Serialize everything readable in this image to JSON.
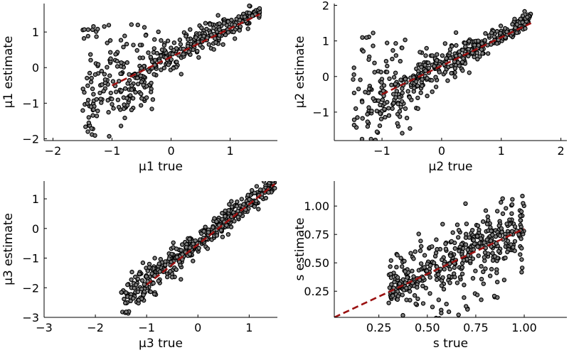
{
  "chart_data": [
    {
      "type": "scatter",
      "xlabel": "μ1 true",
      "ylabel": "μ1 estimate",
      "xlim": [
        -2.15,
        1.8
      ],
      "ylim": [
        -2.05,
        1.8
      ],
      "xticks": [
        -2,
        -1,
        0,
        1
      ],
      "yticks": [
        -2,
        -1,
        0,
        1
      ],
      "xtick_labels": [
        "−2",
        "−1",
        "0",
        "1"
      ],
      "ytick_labels": [
        "−2",
        "−1",
        "0",
        "1"
      ],
      "x_range": [
        -1.5,
        1.5
      ],
      "reference_line": {
        "x": [
          -1.0,
          1.5
        ],
        "y": [
          -0.5,
          1.5
        ],
        "color": "#9b1111",
        "style": "dashed"
      },
      "grid": false,
      "series": [
        {
          "count": 450,
          "x_range": [
            -1.5,
            1.5
          ]
        }
      ]
    },
    {
      "type": "scatter",
      "xlabel": "μ2 true",
      "ylabel": "μ2 estimate",
      "xlim": [
        -1.8,
        2.1
      ],
      "ylim": [
        -1.8,
        2.05
      ],
      "xticks": [
        -1,
        0,
        1,
        2
      ],
      "yticks": [
        -1,
        0,
        1,
        2
      ],
      "xtick_labels": [
        "−1",
        "0",
        "1",
        "2"
      ],
      "ytick_labels": [
        "−1",
        "0",
        "1",
        "2"
      ],
      "x_range": [
        -1.5,
        1.5
      ],
      "reference_line": {
        "x": [
          -1.0,
          1.5
        ],
        "y": [
          -0.5,
          1.5
        ],
        "color": "#9b1111",
        "style": "dashed"
      },
      "grid": false,
      "series": [
        {
          "count": 450,
          "x_range": [
            -1.5,
            1.5
          ]
        }
      ]
    },
    {
      "type": "scatter",
      "xlabel": "μ3 true",
      "ylabel": "μ3 estimate",
      "xlim": [
        -3.0,
        1.55
      ],
      "ylim": [
        -3.0,
        1.6
      ],
      "xticks": [
        -3,
        -2,
        -1,
        0,
        1
      ],
      "yticks": [
        -3,
        -2,
        -1,
        0,
        1
      ],
      "xtick_labels": [
        "−3",
        "−2",
        "−1",
        "0",
        "1"
      ],
      "ytick_labels": [
        "−3",
        "−2",
        "−1",
        "0",
        "1"
      ],
      "x_range": [
        -1.5,
        1.5
      ],
      "reference_line": {
        "x": [
          -1.0,
          1.5
        ],
        "y": [
          -1.9,
          1.5
        ],
        "color": "#9b1111",
        "style": "dashed"
      },
      "grid": false,
      "series": [
        {
          "count": 450,
          "x_range": [
            -1.5,
            1.5
          ]
        }
      ]
    },
    {
      "type": "scatter",
      "xlabel": "s true",
      "ylabel": "s estimate",
      "xlim": [
        0.02,
        1.22
      ],
      "ylim": [
        0.02,
        1.22
      ],
      "xticks": [
        0.25,
        0.5,
        0.75,
        1.0
      ],
      "yticks": [
        0.25,
        0.5,
        0.75,
        1.0
      ],
      "xtick_labels": [
        "0.25",
        "0.50",
        "0.75",
        "1.00"
      ],
      "ytick_labels": [
        "0.25",
        "0.50",
        "0.75",
        "1.00"
      ],
      "x_range": [
        0.3,
        1.0
      ],
      "reference_line": {
        "x": [
          0.02,
          1.0
        ],
        "y": [
          0.02,
          0.8
        ],
        "color": "#9b1111",
        "style": "dashed"
      },
      "grid": false,
      "series": [
        {
          "count": 450,
          "x_range": [
            0.3,
            1.0
          ]
        }
      ]
    }
  ]
}
